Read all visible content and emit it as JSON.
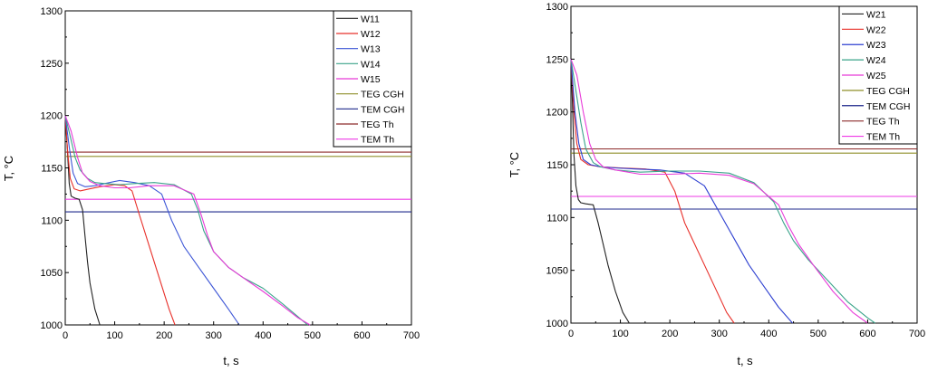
{
  "chart_data": [
    {
      "type": "line",
      "xlabel": "t, s",
      "ylabel": "T, °C",
      "xlim": [
        0,
        700
      ],
      "ylim": [
        1000,
        1300
      ],
      "xticks": [
        0,
        100,
        200,
        300,
        400,
        500,
        600,
        700
      ],
      "yticks": [
        1000,
        1050,
        1100,
        1150,
        1200,
        1250,
        1300
      ],
      "legend_position": "top-right",
      "series": [
        {
          "name": "W11",
          "color": "#222222",
          "x": [
            0,
            4,
            8,
            12,
            16,
            20,
            28,
            35,
            40,
            45,
            50,
            60,
            70
          ],
          "y": [
            1200,
            1170,
            1135,
            1123,
            1122,
            1121,
            1120,
            1110,
            1085,
            1060,
            1040,
            1015,
            1000
          ]
        },
        {
          "name": "W12",
          "color": "#e8302a",
          "x": [
            0,
            5,
            10,
            18,
            30,
            50,
            70,
            100,
            120,
            135,
            150,
            170,
            190,
            210,
            222
          ],
          "y": [
            1200,
            1165,
            1140,
            1130,
            1128,
            1130,
            1132,
            1134,
            1133,
            1128,
            1105,
            1075,
            1045,
            1015,
            1000
          ]
        },
        {
          "name": "W13",
          "color": "#3d56d6",
          "x": [
            0,
            8,
            16,
            25,
            40,
            60,
            80,
            110,
            140,
            170,
            195,
            215,
            240,
            270,
            300,
            330,
            352
          ],
          "y": [
            1200,
            1170,
            1145,
            1135,
            1132,
            1133,
            1135,
            1138,
            1136,
            1133,
            1125,
            1100,
            1075,
            1055,
            1035,
            1015,
            1000
          ]
        },
        {
          "name": "W14",
          "color": "#3aa38a",
          "x": [
            0,
            10,
            20,
            30,
            45,
            60,
            80,
            110,
            140,
            180,
            220,
            255,
            268,
            280,
            300,
            330,
            360,
            400,
            440,
            470,
            490
          ],
          "y": [
            1200,
            1180,
            1160,
            1148,
            1140,
            1136,
            1135,
            1134,
            1135,
            1136,
            1134,
            1125,
            1110,
            1090,
            1070,
            1055,
            1045,
            1035,
            1020,
            1008,
            1000
          ]
        },
        {
          "name": "W15",
          "color": "#e83ad8",
          "x": [
            0,
            12,
            25,
            35,
            50,
            70,
            100,
            130,
            170,
            220,
            260,
            275,
            288,
            300,
            330,
            360,
            400,
            440,
            470,
            495
          ],
          "y": [
            1200,
            1185,
            1160,
            1145,
            1137,
            1133,
            1131,
            1131,
            1133,
            1133,
            1125,
            1105,
            1085,
            1070,
            1055,
            1045,
            1032,
            1018,
            1007,
            1000
          ]
        },
        {
          "name": "TEG CGH",
          "color": "#8f8f2a",
          "x": [
            0,
            700
          ],
          "y": [
            1161,
            1161
          ]
        },
        {
          "name": "TEM CGH",
          "color": "#1f2a8c",
          "x": [
            0,
            700
          ],
          "y": [
            1108,
            1108
          ]
        },
        {
          "name": "TEG Th",
          "color": "#8c2a2a",
          "x": [
            0,
            700
          ],
          "y": [
            1165,
            1165
          ]
        },
        {
          "name": "TEM Th",
          "color": "#ee3ae6",
          "x": [
            0,
            700
          ],
          "y": [
            1120,
            1120
          ]
        }
      ]
    },
    {
      "type": "line",
      "xlabel": "t, s",
      "ylabel": "T, °C",
      "xlim": [
        0,
        700
      ],
      "ylim": [
        1000,
        1300
      ],
      "xticks": [
        0,
        100,
        200,
        300,
        400,
        500,
        600,
        700
      ],
      "yticks": [
        1000,
        1050,
        1100,
        1150,
        1200,
        1250,
        1300
      ],
      "legend_position": "top-right",
      "series": [
        {
          "name": "W21",
          "color": "#222222",
          "x": [
            0,
            3,
            6,
            10,
            15,
            20,
            30,
            45,
            55,
            65,
            75,
            90,
            105,
            118
          ],
          "y": [
            1250,
            1210,
            1160,
            1130,
            1117,
            1114,
            1113,
            1112,
            1095,
            1075,
            1055,
            1030,
            1010,
            1000
          ]
        },
        {
          "name": "W22",
          "color": "#e8302a",
          "x": [
            0,
            6,
            12,
            20,
            35,
            60,
            100,
            150,
            190,
            210,
            230,
            260,
            290,
            315,
            330
          ],
          "y": [
            1250,
            1200,
            1170,
            1155,
            1150,
            1148,
            1147,
            1146,
            1143,
            1125,
            1095,
            1065,
            1035,
            1010,
            1000
          ]
        },
        {
          "name": "W23",
          "color": "#2d3fd0",
          "x": [
            0,
            8,
            16,
            25,
            40,
            60,
            90,
            130,
            180,
            230,
            270,
            300,
            330,
            360,
            390,
            420,
            448
          ],
          "y": [
            1250,
            1200,
            1170,
            1155,
            1150,
            1148,
            1147,
            1146,
            1145,
            1142,
            1130,
            1105,
            1080,
            1055,
            1035,
            1015,
            1000
          ]
        },
        {
          "name": "W24",
          "color": "#3aa38a",
          "x": [
            0,
            10,
            20,
            30,
            45,
            60,
            90,
            140,
            200,
            260,
            320,
            370,
            410,
            430,
            450,
            480,
            520,
            560,
            600,
            615
          ],
          "y": [
            1250,
            1220,
            1190,
            1165,
            1152,
            1148,
            1145,
            1143,
            1144,
            1144,
            1142,
            1133,
            1115,
            1095,
            1078,
            1060,
            1040,
            1020,
            1005,
            1000
          ]
        },
        {
          "name": "W25",
          "color": "#e83ad8",
          "x": [
            0,
            12,
            25,
            38,
            50,
            65,
            90,
            140,
            200,
            260,
            320,
            370,
            420,
            440,
            460,
            490,
            530,
            570,
            600
          ],
          "y": [
            1250,
            1235,
            1200,
            1170,
            1155,
            1148,
            1145,
            1141,
            1141,
            1142,
            1140,
            1132,
            1112,
            1092,
            1075,
            1055,
            1030,
            1010,
            1000
          ]
        },
        {
          "name": "TEG CGH",
          "color": "#8f8f2a",
          "x": [
            0,
            700
          ],
          "y": [
            1161,
            1161
          ]
        },
        {
          "name": "TEM CGH",
          "color": "#1f2a8c",
          "x": [
            0,
            700
          ],
          "y": [
            1108,
            1108
          ]
        },
        {
          "name": "TEG Th",
          "color": "#8c2a2a",
          "x": [
            0,
            700
          ],
          "y": [
            1165,
            1165
          ]
        },
        {
          "name": "TEM Th",
          "color": "#ee3ae6",
          "x": [
            0,
            700
          ],
          "y": [
            1120,
            1120
          ]
        }
      ]
    }
  ]
}
